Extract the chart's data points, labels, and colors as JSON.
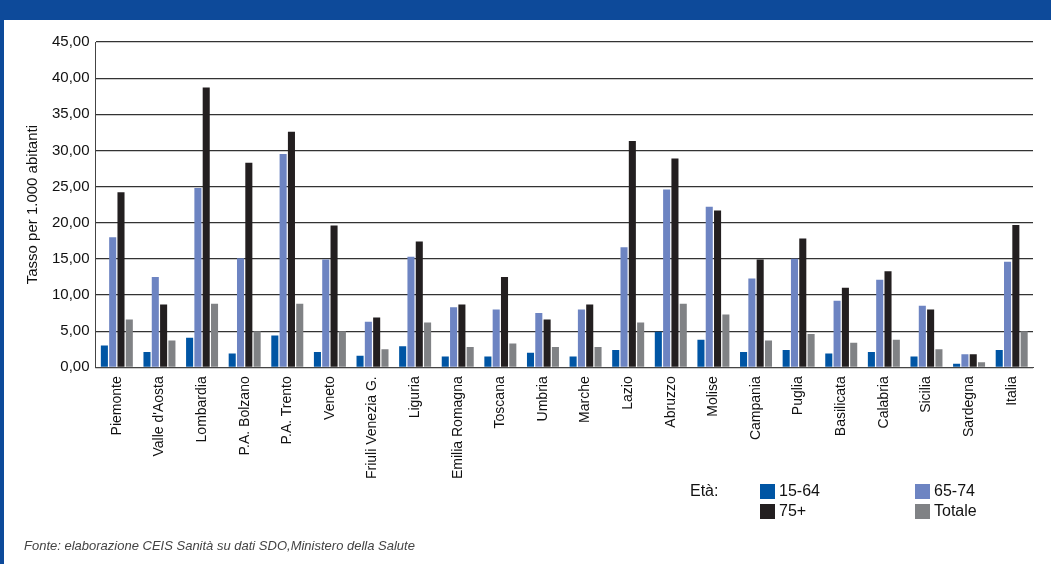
{
  "chart_data": {
    "type": "bar",
    "ylabel": "Tasso per 1.000 abitanti",
    "legend_title": "Età:",
    "legend": "bottom right",
    "grid": "y",
    "categories": [
      "Piemonte",
      "Valle d'Aosta",
      "Lombardia",
      "P.A. Bolzano",
      "P.A. Trento",
      "Veneto",
      "Friuli Venezia G.",
      "Liguria",
      "Emilia Romagna",
      "Toscana",
      "Umbria",
      "Marche",
      "Lazio",
      "Abruzzo",
      "Molise",
      "Campania",
      "Puglia",
      "Basilicata",
      "Calabria",
      "Sicilia",
      "Sardegna",
      "Italia"
    ],
    "series": [
      {
        "name": "15-64",
        "color": "#0055a4",
        "values": [
          3.0,
          2.1,
          4.1,
          1.9,
          4.4,
          2.1,
          1.6,
          2.9,
          1.5,
          1.5,
          2.0,
          1.5,
          2.4,
          4.9,
          3.8,
          2.1,
          2.4,
          1.9,
          2.1,
          1.5,
          0.5,
          2.4
        ]
      },
      {
        "name": "65-74",
        "color": "#6d84c2",
        "values": [
          18.0,
          12.5,
          24.8,
          15.1,
          29.5,
          14.9,
          6.3,
          15.3,
          8.3,
          8.0,
          7.5,
          8.0,
          16.6,
          24.6,
          22.2,
          12.3,
          15.0,
          9.2,
          12.1,
          8.5,
          1.8,
          14.6
        ]
      },
      {
        "name": "75+",
        "color": "#231f20",
        "values": [
          24.2,
          8.7,
          38.7,
          28.3,
          32.6,
          19.6,
          6.9,
          17.4,
          8.7,
          12.5,
          6.6,
          8.7,
          31.3,
          28.9,
          21.7,
          14.9,
          17.8,
          11.0,
          13.3,
          8.0,
          1.8,
          19.7
        ]
      },
      {
        "name": "Totale",
        "color": "#808285",
        "values": [
          6.6,
          3.7,
          8.8,
          5.0,
          8.8,
          5.0,
          2.5,
          6.2,
          2.8,
          3.3,
          2.8,
          2.8,
          6.2,
          8.8,
          7.3,
          3.7,
          4.6,
          3.4,
          3.8,
          2.5,
          0.7,
          5.0
        ]
      }
    ],
    "ylim": [
      0,
      45
    ],
    "yticks": [
      {
        "value": 0,
        "label": "0,00"
      },
      {
        "value": 5,
        "label": "5,00"
      },
      {
        "value": 10,
        "label": "10,00"
      },
      {
        "value": 15,
        "label": "15,00"
      },
      {
        "value": 20,
        "label": "20,00"
      },
      {
        "value": 25,
        "label": "25,00"
      },
      {
        "value": 30,
        "label": "30,00"
      },
      {
        "value": 35,
        "label": "35,00"
      },
      {
        "value": 40,
        "label": "40,00"
      },
      {
        "value": 45,
        "label": "45,00"
      }
    ],
    "annotations": [
      "Fonte:   elaborazione CEIS Sanità su dati SDO,Ministero della Salute"
    ]
  }
}
